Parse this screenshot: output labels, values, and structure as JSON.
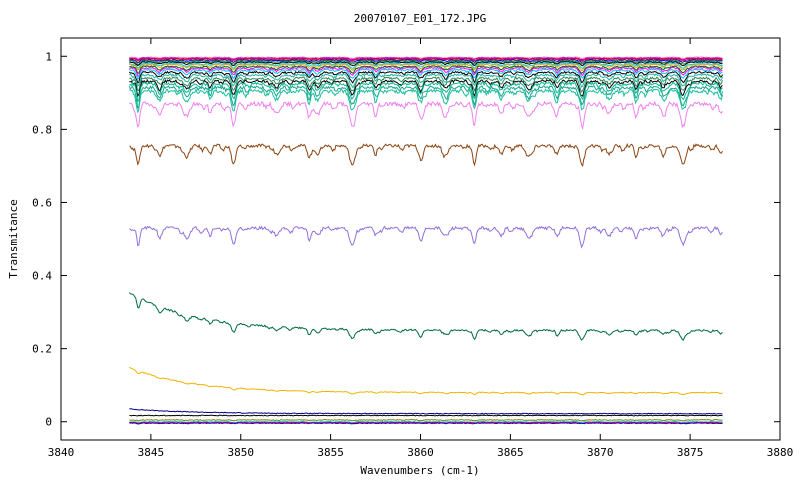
{
  "chart_data": {
    "type": "line",
    "title": "20070107_E01_172.JPG",
    "xlabel": "Wavenumbers (cm-1)",
    "ylabel": "Transmitance",
    "xlim": [
      3840,
      3880
    ],
    "ylim": [
      -0.05,
      1.05
    ],
    "xticks": [
      3840,
      3845,
      3850,
      3855,
      3860,
      3865,
      3870,
      3875,
      3880
    ],
    "xtick_labels": [
      "3840",
      "3845",
      "3850",
      "3855",
      "3860",
      "3865",
      "3870",
      "3875",
      "3880"
    ],
    "yticks": [
      0,
      0.2,
      0.4,
      0.6,
      0.8,
      1
    ],
    "ytick_labels": [
      "0",
      "0.2",
      "0.4",
      "0.6",
      "0.8",
      "1"
    ],
    "grid": false,
    "legend": "none",
    "x_range_data": [
      3843.8,
      3876.8
    ],
    "absorption_lines": [
      3844.3,
      3845.5,
      3847.0,
      3848.3,
      3849.6,
      3852.0,
      3853.8,
      3854.3,
      3856.2,
      3857.5,
      3860.0,
      3861.4,
      3863.0,
      3864.5,
      3866.0,
      3867.6,
      3869.0,
      3870.5,
      3872.0,
      3873.5,
      3874.6,
      3876.7
    ],
    "series": [
      {
        "color": "#ff69b4",
        "baseline": 0.997,
        "depth": 0.003
      },
      {
        "color": "#9400d3",
        "baseline": 0.995,
        "depth": 0.004
      },
      {
        "color": "#ff0000",
        "baseline": 0.993,
        "depth": 0.005
      },
      {
        "color": "#0000ff",
        "baseline": 0.99,
        "depth": 0.006
      },
      {
        "color": "#228b22",
        "baseline": 0.987,
        "depth": 0.008
      },
      {
        "color": "#000000",
        "baseline": 0.984,
        "depth": 0.009
      },
      {
        "color": "#00ced1",
        "baseline": 0.98,
        "depth": 0.012
      },
      {
        "color": "#daa520",
        "baseline": 0.977,
        "depth": 0.014
      },
      {
        "color": "#006400",
        "baseline": 0.972,
        "depth": 0.017
      },
      {
        "color": "#ff00ff",
        "baseline": 0.968,
        "depth": 0.019
      },
      {
        "color": "#00bfff",
        "baseline": 0.963,
        "depth": 0.022
      },
      {
        "color": "#000000",
        "baseline": 0.956,
        "depth": 0.026
      },
      {
        "color": "#20b2aa",
        "baseline": 0.949,
        "depth": 0.03
      },
      {
        "color": "#2e8b57",
        "baseline": 0.94,
        "depth": 0.034
      },
      {
        "color": "#000000",
        "baseline": 0.932,
        "depth": 0.038
      },
      {
        "color": "#00b894",
        "baseline": 0.925,
        "depth": 0.042
      },
      {
        "color": "#17a589",
        "baseline": 0.915,
        "depth": 0.047
      },
      {
        "color": "#1abc9c",
        "baseline": 0.905,
        "depth": 0.052
      },
      {
        "color": "#ee82ee",
        "baseline": 0.87,
        "depth": 0.06
      },
      {
        "color": "#8b4513",
        "baseline": 0.755,
        "depth": 0.05
      },
      {
        "color": "#9370db",
        "baseline": 0.53,
        "depth": 0.045
      },
      {
        "color": "#006b3c",
        "baseline": 0.25,
        "depth": 0.025,
        "start": 0.355
      },
      {
        "color": "#f0b400",
        "baseline": 0.08,
        "depth": 0.006,
        "start": 0.148
      },
      {
        "color": "#00008b",
        "baseline": 0.022,
        "depth": 0.0,
        "start": 0.035
      },
      {
        "color": "#000000",
        "baseline": 0.017,
        "depth": 0.0
      },
      {
        "color": "#808000",
        "baseline": 0.005,
        "depth": 0.002
      },
      {
        "color": "#00ced1",
        "baseline": 0.0,
        "depth": 0.002
      },
      {
        "color": "#ff0000",
        "baseline": -0.002,
        "depth": 0.002
      },
      {
        "color": "#0000ff",
        "baseline": -0.004,
        "depth": 0.001
      }
    ]
  }
}
